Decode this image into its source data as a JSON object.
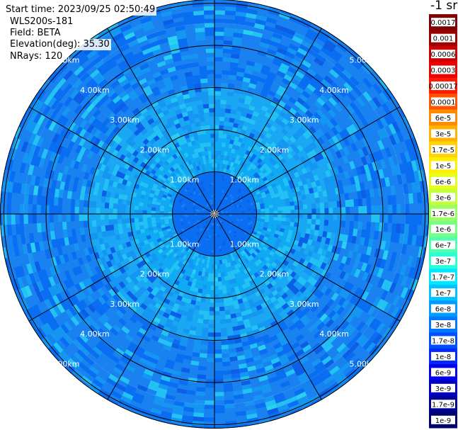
{
  "info": {
    "start_time": "Start time: 2023/09/25 02:50:49",
    "instrument": "WLS200s-181",
    "field": "Field: BETA",
    "elevation": "Elevation(deg): 35.30",
    "nrays": "NRays: 120"
  },
  "chart_data": {
    "type": "heatmap",
    "projection": "polar",
    "field": "BETA",
    "unit_label": "-1 sr",
    "range_rings_km": [
      1,
      2,
      3,
      4,
      5
    ],
    "ring_label_unit": "km",
    "ring_labels": [
      "1.00km",
      "2.00km",
      "3.00km",
      "4.00km",
      "5.00km"
    ],
    "n_rays": 120,
    "spokes": 12,
    "colorbar": {
      "labels": [
        "0.0017",
        "0.001",
        "0.0006",
        "0.0003",
        "0.00017",
        "0.0001",
        "6e-5",
        "3e-5",
        "1.7e-5",
        "1e-5",
        "6e-6",
        "3e-6",
        "1.7e-6",
        "1e-6",
        "6e-7",
        "3e-7",
        "1.7e-7",
        "1e-7",
        "6e-8",
        "3e-8",
        "1.7e-8",
        "1e-8",
        "6e-9",
        "3e-9",
        "1.7e-9",
        "1e-9"
      ],
      "colors": [
        "#7f0000",
        "#990000",
        "#cc0000",
        "#ee0000",
        "#ff1a00",
        "#ff5500",
        "#ff8c00",
        "#ffb300",
        "#ffd400",
        "#ffee00",
        "#e6ff1a",
        "#c2ff3d",
        "#9cff60",
        "#76ff86",
        "#4effb0",
        "#26ffd8",
        "#00e8ff",
        "#00c4ff",
        "#009cff",
        "#0078ff",
        "#0050ff",
        "#0028ff",
        "#0000ee",
        "#0000c0",
        "#000094",
        "#00006e"
      ]
    },
    "background_levels": {
      "inner_0_1km": "#0a6ef2",
      "ring_1_2km": "#10aaf4",
      "ring_2_3km": "#1aa8f4",
      "ring_3_4km": "#1a82f0",
      "ring_4_5km": "#1878ee"
    }
  }
}
